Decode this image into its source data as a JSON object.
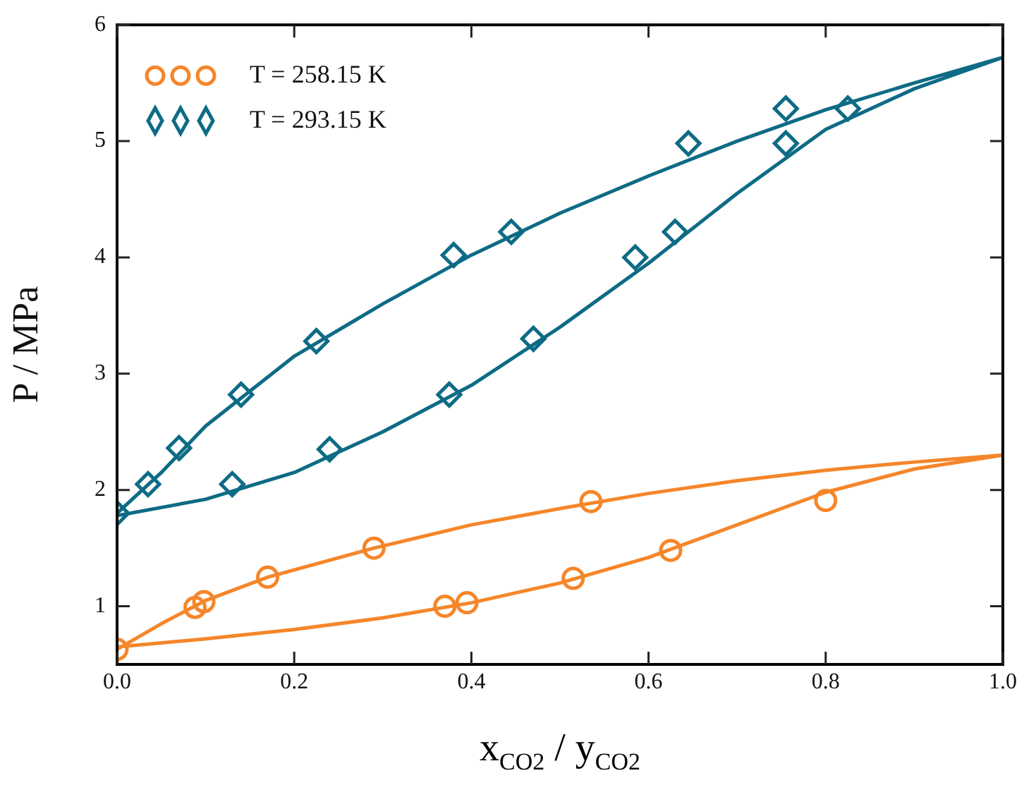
{
  "chart_data": {
    "type": "scatter",
    "xlabel": "x$_{CO2}$ / y$_{CO2}$",
    "ylabel": "P / MPa",
    "xlim": [
      0,
      1
    ],
    "xticks": [
      {
        "value": 0,
        "label": "0.0"
      },
      {
        "value": 0.2,
        "label": "0.2"
      },
      {
        "value": 0.4,
        "label": "0.4"
      },
      {
        "value": 0.6,
        "label": "0.6"
      },
      {
        "value": 0.8,
        "label": "0.8"
      },
      {
        "value": 1,
        "label": "1.0"
      }
    ],
    "ylim": [
      0.5,
      6
    ],
    "yticks": [
      1,
      2,
      3,
      4,
      5,
      6
    ],
    "grid": false,
    "legend": "top left",
    "series": [
      {
        "type": "scatter",
        "name": "T = 258.15 K",
        "color": "#f5862a",
        "marker": "circle",
        "x": [
          0,
          0.088,
          0.098,
          0.17,
          0.29,
          0.37,
          0.395,
          0.515,
          0.535,
          0.625,
          0.8
        ],
        "values": [
          0.63,
          0.99,
          1.04,
          1.25,
          1.5,
          1.0,
          1.03,
          1.24,
          1.9,
          1.48,
          1.91
        ]
      },
      {
        "type": "scatter",
        "name": "T = 293.15 K",
        "color": "#0e6b85",
        "marker": "diamond",
        "x": [
          0,
          0.035,
          0.07,
          0.13,
          0.14,
          0.225,
          0.24,
          0.375,
          0.38,
          0.445,
          0.47,
          0.585,
          0.63,
          0.645,
          0.755,
          0.755,
          0.825
        ],
        "values": [
          1.8,
          2.05,
          2.36,
          2.05,
          2.82,
          3.28,
          2.35,
          2.82,
          4.02,
          4.22,
          3.3,
          4.0,
          4.22,
          4.98,
          5.28,
          4.98,
          5.28
        ]
      },
      {
        "type": "line",
        "color": "#f5862a",
        "x": [
          0,
          0.05,
          0.1,
          0.17,
          0.29,
          0.4,
          0.5,
          0.6,
          0.7,
          0.8,
          0.9,
          1.0,
          0.9,
          0.8,
          0.7,
          0.6,
          0.5,
          0.4,
          0.3,
          0.2,
          0.1,
          0
        ],
        "values": [
          0.63,
          0.85,
          1.05,
          1.25,
          1.5,
          1.7,
          1.84,
          1.97,
          2.08,
          2.17,
          2.24,
          2.3,
          2.18,
          1.98,
          1.7,
          1.42,
          1.2,
          1.03,
          0.9,
          0.8,
          0.72,
          0.65
        ]
      },
      {
        "type": "line",
        "color": "#0e6b85",
        "x": [
          0,
          0.05,
          0.1,
          0.2,
          0.3,
          0.4,
          0.5,
          0.6,
          0.7,
          0.8,
          0.9,
          1.0,
          0.9,
          0.8,
          0.7,
          0.6,
          0.5,
          0.4,
          0.3,
          0.2,
          0.1,
          0
        ],
        "values": [
          1.8,
          2.15,
          2.55,
          3.15,
          3.6,
          4.02,
          4.38,
          4.7,
          5.0,
          5.27,
          5.5,
          5.72,
          5.45,
          5.1,
          4.55,
          3.95,
          3.4,
          2.9,
          2.5,
          2.15,
          1.92,
          1.78
        ]
      }
    ]
  }
}
